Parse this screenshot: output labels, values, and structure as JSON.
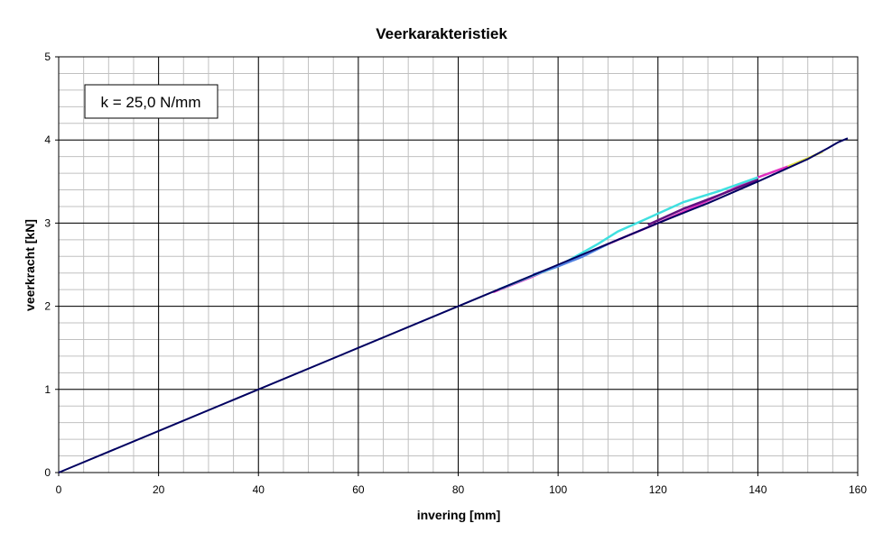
{
  "chart_data": {
    "type": "line",
    "title": "Veerkarakteristiek",
    "xlabel": "invering [mm]",
    "ylabel": "veerkracht [kN]",
    "xlim": [
      0,
      160
    ],
    "ylim": [
      0,
      5
    ],
    "xticks": [
      0,
      20,
      40,
      60,
      80,
      100,
      120,
      140,
      160
    ],
    "yticks": [
      0,
      1,
      2,
      3,
      4,
      5
    ],
    "x_minor_step": 5,
    "y_minor_step": 0.2,
    "grid": true,
    "annotation": "k = 25,0 N/mm",
    "series": [
      {
        "name": "magenta",
        "color": "#e030c0",
        "x": [
          87,
          95,
          105,
          112,
          120,
          130,
          140,
          146
        ],
        "y": [
          2.17,
          2.36,
          2.62,
          2.8,
          3.0,
          3.27,
          3.55,
          3.68
        ]
      },
      {
        "name": "cyan",
        "color": "#40e0e0",
        "x": [
          88,
          95,
          100,
          108,
          112,
          118,
          125,
          132,
          140
        ],
        "y": [
          2.2,
          2.37,
          2.48,
          2.75,
          2.9,
          3.06,
          3.25,
          3.38,
          3.55
        ]
      },
      {
        "name": "blue",
        "color": "#5080e0",
        "x": [
          95,
          100,
          105,
          110
        ],
        "y": [
          2.38,
          2.48,
          2.6,
          2.75
        ]
      },
      {
        "name": "purple",
        "color": "#601080",
        "x": [
          118,
          125,
          132,
          140
        ],
        "y": [
          2.98,
          3.17,
          3.33,
          3.52
        ]
      },
      {
        "name": "yellow",
        "color": "#e0e040",
        "x": [
          146,
          150,
          153
        ],
        "y": [
          3.68,
          3.78,
          3.86
        ]
      },
      {
        "name": "navy",
        "color": "#000060",
        "x": [
          0,
          20,
          40,
          60,
          80,
          100,
          110,
          120,
          130,
          140,
          150,
          154,
          156,
          158
        ],
        "y": [
          0,
          0.5,
          1.0,
          1.5,
          2.0,
          2.5,
          2.75,
          3.0,
          3.24,
          3.5,
          3.77,
          3.9,
          3.97,
          4.02
        ]
      }
    ]
  }
}
